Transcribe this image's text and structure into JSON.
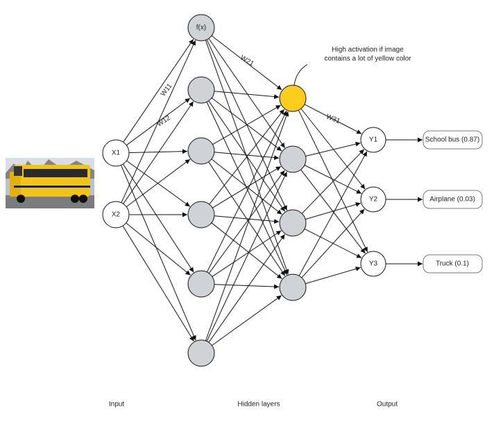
{
  "input_nodes": [
    "X1",
    "X2"
  ],
  "hidden_node_label": "f(x)",
  "output_nodes": [
    "Y1",
    "Y2",
    "Y3"
  ],
  "outputs": [
    "School bus (0.87)",
    "Airplane (0.03)",
    "Truck (0.1)"
  ],
  "weights": [
    "W11",
    "W12",
    "W21",
    "W31"
  ],
  "annotation": [
    "High activation if image",
    "contains a lot of yellow color"
  ],
  "layers": [
    "Input",
    "Hidden layers",
    "Output"
  ]
}
